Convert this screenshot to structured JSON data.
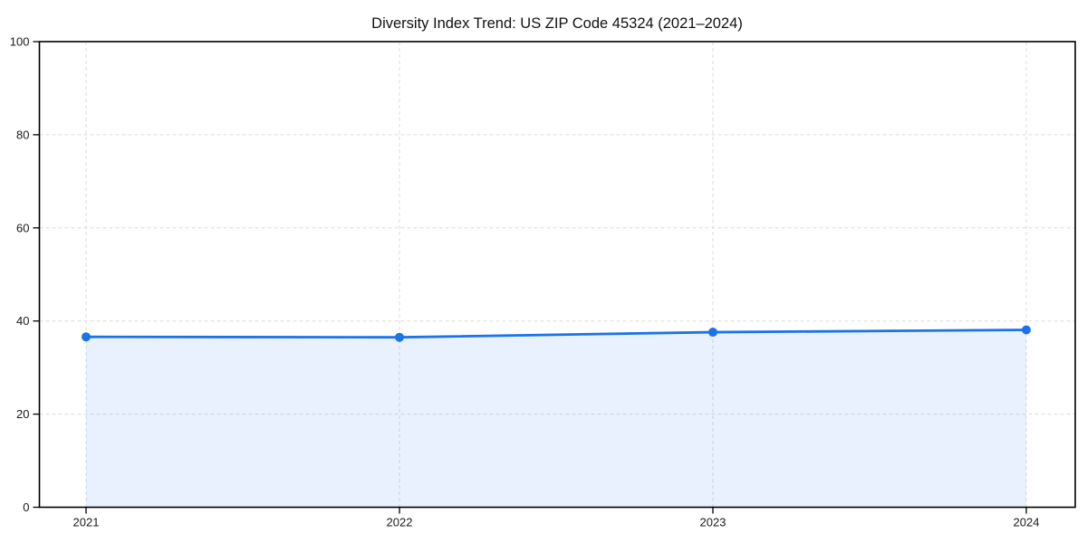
{
  "chart_data": {
    "type": "area",
    "title": "Diversity Index Trend: US ZIP Code 45324 (2021–2024)",
    "categories": [
      "2021",
      "2022",
      "2023",
      "2024"
    ],
    "series": [
      {
        "name": "Diversity Index",
        "values": [
          36.6,
          36.5,
          37.6,
          38.1
        ]
      }
    ],
    "xlabel": "",
    "ylabel": "",
    "ylim": [
      0,
      100
    ],
    "yticks": [
      0,
      20,
      40,
      60,
      80,
      100
    ],
    "grid": "on",
    "grid_style": "dashed",
    "legend_position": "none",
    "marker": "circle",
    "colors": {
      "line": "#1a73e8",
      "marker": "#1a73e8",
      "fill": "rgba(26,115,232,0.10)",
      "grid": "#dcdcdc",
      "spine": "#000000",
      "tick_text": "#1a1a1a",
      "title_text": "#111111",
      "background": "#ffffff"
    }
  }
}
